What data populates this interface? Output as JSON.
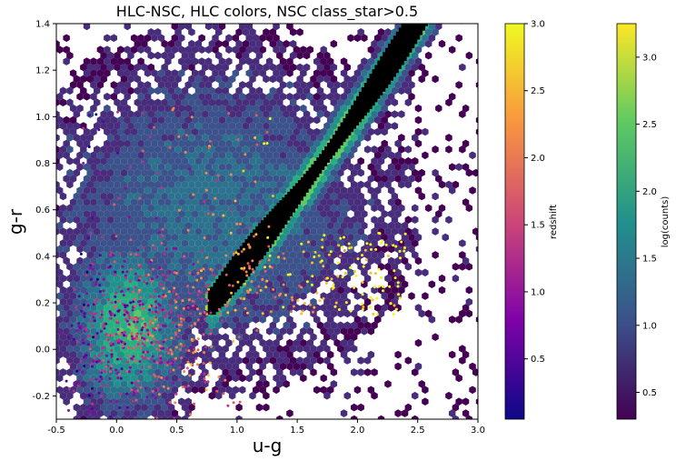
{
  "chart_data": {
    "type": "scatter",
    "title": "HLC-NSC, HLC colors, NSC class_star>0.5",
    "xlabel": "u-g",
    "ylabel": "g-r",
    "xlim": [
      -0.5,
      3.0
    ],
    "ylim": [
      -0.3,
      1.4
    ],
    "x_ticks": [
      -0.5,
      0.0,
      0.5,
      1.0,
      1.5,
      2.0,
      2.5,
      3.0
    ],
    "y_ticks": [
      -0.2,
      0.0,
      0.2,
      0.4,
      0.6,
      0.8,
      1.0,
      1.2,
      1.4
    ],
    "grid": false,
    "layers": [
      {
        "kind": "hexbin",
        "colorbar_label": "log(counts)",
        "colormap": "viridis"
      },
      {
        "kind": "scatter",
        "colorbar_label": "redshift",
        "colormap": "plasma"
      }
    ],
    "hexbin_regions": [
      {
        "region": "stellar-locus",
        "x": [
          0.8,
          1.0,
          1.3,
          1.6,
          1.9,
          2.2,
          2.5,
          2.7
        ],
        "y": [
          0.2,
          0.32,
          0.5,
          0.7,
          0.9,
          1.08,
          1.25,
          1.38
        ],
        "log_counts": 3.2
      },
      {
        "region": "quasar-region",
        "x": [
          -0.1,
          0.1,
          0.4,
          0.6
        ],
        "y": [
          -0.05,
          0.1,
          0.15,
          0.05
        ],
        "log_counts": 1.5
      }
    ],
    "colorbars": [
      {
        "label": "redshift",
        "ticks": [
          "0.5",
          "1.0",
          "1.5",
          "2.0",
          "2.5",
          "3.0"
        ],
        "range": [
          0.05,
          3.0
        ]
      },
      {
        "label": "log(counts)",
        "ticks": [
          "0.5",
          "1.0",
          "1.5",
          "2.0",
          "2.5",
          "3.0"
        ],
        "range": [
          0.3,
          3.25
        ]
      }
    ]
  }
}
